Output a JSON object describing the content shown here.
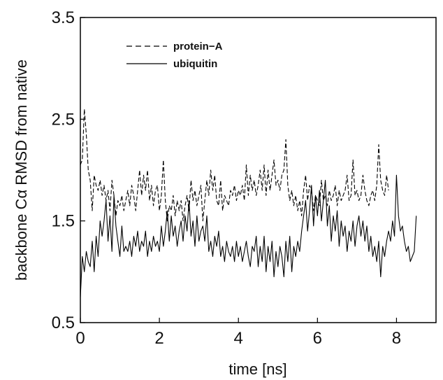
{
  "chart_data": {
    "type": "line",
    "xlabel": "time [ns]",
    "ylabel": "backbone Cα RMSD from native",
    "xlim": [
      0,
      9
    ],
    "ylim": [
      0.5,
      3.5
    ],
    "x_ticks": [
      "0",
      "2",
      "4",
      "6",
      "8"
    ],
    "y_ticks": [
      "0.5",
      "1.5",
      "2.5",
      "3.5"
    ],
    "grid": false,
    "legend_position": "top-left",
    "series": [
      {
        "name": "protein-A",
        "style": "dashed",
        "color": "#000000",
        "x": [
          0.0,
          0.05,
          0.1,
          0.15,
          0.2,
          0.25,
          0.3,
          0.35,
          0.4,
          0.45,
          0.5,
          0.55,
          0.6,
          0.65,
          0.7,
          0.75,
          0.8,
          0.85,
          0.9,
          0.95,
          1.0,
          1.05,
          1.1,
          1.15,
          1.2,
          1.25,
          1.3,
          1.35,
          1.4,
          1.45,
          1.5,
          1.55,
          1.6,
          1.65,
          1.7,
          1.75,
          1.8,
          1.85,
          1.9,
          1.95,
          2.0,
          2.05,
          2.1,
          2.15,
          2.2,
          2.25,
          2.3,
          2.35,
          2.4,
          2.45,
          2.5,
          2.55,
          2.6,
          2.65,
          2.7,
          2.75,
          2.8,
          2.85,
          2.9,
          2.95,
          3.0,
          3.05,
          3.1,
          3.15,
          3.2,
          3.25,
          3.3,
          3.35,
          3.4,
          3.45,
          3.5,
          3.55,
          3.6,
          3.65,
          3.7,
          3.75,
          3.8,
          3.85,
          3.9,
          3.95,
          4.0,
          4.05,
          4.1,
          4.15,
          4.2,
          4.25,
          4.3,
          4.35,
          4.4,
          4.45,
          4.5,
          4.55,
          4.6,
          4.65,
          4.7,
          4.75,
          4.8,
          4.85,
          4.9,
          4.95,
          5.0,
          5.05,
          5.1,
          5.15,
          5.2,
          5.25,
          5.3,
          5.35,
          5.4,
          5.45,
          5.5,
          5.55,
          5.6,
          5.65,
          5.7,
          5.75,
          5.8,
          5.85,
          5.9,
          5.95,
          6.0,
          6.05,
          6.1,
          6.15,
          6.2,
          6.25,
          6.3,
          6.35,
          6.4,
          6.45,
          6.5,
          6.55,
          6.6,
          6.65,
          6.7,
          6.75,
          6.8,
          6.85,
          6.9,
          6.95,
          7.0,
          7.05,
          7.1,
          7.15,
          7.2,
          7.25,
          7.3,
          7.35,
          7.4,
          7.45,
          7.5,
          7.55,
          7.6,
          7.65,
          7.7,
          7.75,
          7.8
        ],
        "values": [
          2.05,
          2.1,
          2.6,
          2.35,
          2.0,
          1.9,
          1.6,
          1.95,
          1.85,
          1.8,
          1.9,
          1.75,
          1.85,
          1.7,
          1.8,
          1.6,
          1.9,
          1.75,
          1.55,
          1.7,
          1.65,
          1.75,
          1.6,
          1.7,
          1.8,
          1.65,
          1.85,
          1.75,
          1.6,
          1.8,
          2.0,
          1.75,
          1.95,
          1.8,
          2.0,
          1.7,
          1.85,
          1.65,
          1.8,
          1.85,
          1.6,
          1.75,
          2.1,
          1.7,
          1.5,
          1.65,
          1.6,
          1.75,
          1.55,
          1.7,
          1.6,
          1.7,
          1.5,
          1.65,
          1.75,
          1.6,
          1.9,
          1.7,
          1.8,
          1.65,
          1.75,
          1.85,
          1.5,
          1.7,
          1.9,
          1.75,
          2.0,
          1.8,
          1.95,
          1.7,
          1.65,
          1.9,
          1.6,
          1.75,
          1.7,
          1.65,
          1.8,
          1.75,
          1.85,
          1.7,
          1.8,
          1.75,
          1.85,
          1.7,
          2.05,
          1.75,
          1.95,
          1.8,
          1.9,
          1.75,
          1.85,
          2.0,
          1.8,
          2.05,
          1.75,
          2.0,
          1.8,
          1.95,
          2.1,
          1.85,
          1.9,
          1.8,
          1.95,
          2.0,
          2.3,
          1.85,
          1.7,
          1.8,
          1.65,
          1.75,
          1.6,
          1.7,
          1.55,
          1.8,
          1.95,
          1.7,
          1.85,
          1.8,
          1.6,
          1.75,
          1.7,
          1.65,
          1.9,
          1.7,
          1.75,
          1.65,
          1.8,
          1.7,
          1.75,
          1.85,
          1.65,
          1.8,
          1.7,
          1.75,
          1.8,
          1.95,
          1.7,
          1.75,
          2.1,
          1.75,
          1.8,
          1.7,
          1.75,
          1.95,
          1.8,
          1.7,
          1.65,
          1.75,
          1.8,
          1.7,
          1.85,
          2.25,
          1.9,
          1.8,
          1.75,
          1.95,
          1.8
        ],
        "label_text": "protein−A"
      },
      {
        "name": "ubiquitin",
        "style": "solid",
        "color": "#000000",
        "x": [
          0.0,
          0.05,
          0.1,
          0.15,
          0.2,
          0.25,
          0.3,
          0.35,
          0.4,
          0.45,
          0.5,
          0.55,
          0.6,
          0.65,
          0.7,
          0.75,
          0.8,
          0.85,
          0.9,
          0.95,
          1.0,
          1.05,
          1.1,
          1.15,
          1.2,
          1.25,
          1.3,
          1.35,
          1.4,
          1.45,
          1.5,
          1.55,
          1.6,
          1.65,
          1.7,
          1.75,
          1.8,
          1.85,
          1.9,
          1.95,
          2.0,
          2.05,
          2.1,
          2.15,
          2.2,
          2.25,
          2.3,
          2.35,
          2.4,
          2.45,
          2.5,
          2.55,
          2.6,
          2.65,
          2.7,
          2.75,
          2.8,
          2.85,
          2.9,
          2.95,
          3.0,
          3.05,
          3.1,
          3.15,
          3.2,
          3.25,
          3.3,
          3.35,
          3.4,
          3.45,
          3.5,
          3.55,
          3.6,
          3.65,
          3.7,
          3.75,
          3.8,
          3.85,
          3.9,
          3.95,
          4.0,
          4.05,
          4.1,
          4.15,
          4.2,
          4.25,
          4.3,
          4.35,
          4.4,
          4.45,
          4.5,
          4.55,
          4.6,
          4.65,
          4.7,
          4.75,
          4.8,
          4.85,
          4.9,
          4.95,
          5.0,
          5.05,
          5.1,
          5.15,
          5.2,
          5.25,
          5.3,
          5.35,
          5.4,
          5.45,
          5.5,
          5.55,
          5.6,
          5.65,
          5.7,
          5.75,
          5.8,
          5.85,
          5.9,
          5.95,
          6.0,
          6.05,
          6.1,
          6.15,
          6.2,
          6.25,
          6.3,
          6.35,
          6.4,
          6.45,
          6.5,
          6.55,
          6.6,
          6.65,
          6.7,
          6.75,
          6.8,
          6.85,
          6.9,
          6.95,
          7.0,
          7.05,
          7.1,
          7.15,
          7.2,
          7.25,
          7.3,
          7.35,
          7.4,
          7.45,
          7.5,
          7.55,
          7.6,
          7.65,
          7.7,
          7.75,
          7.8,
          7.85,
          7.9,
          7.95,
          8.0,
          8.05,
          8.1,
          8.15,
          8.2,
          8.25,
          8.3,
          8.35,
          8.4,
          8.45,
          8.5
        ],
        "values": [
          0.75,
          1.15,
          1.0,
          1.2,
          1.1,
          1.05,
          1.3,
          1.0,
          1.35,
          1.15,
          1.5,
          1.35,
          1.5,
          1.7,
          1.3,
          1.55,
          1.2,
          1.75,
          1.45,
          1.3,
          1.15,
          1.45,
          1.2,
          1.25,
          1.2,
          1.3,
          1.15,
          1.35,
          1.25,
          1.4,
          1.2,
          1.3,
          1.25,
          1.4,
          1.15,
          1.3,
          1.2,
          1.35,
          1.25,
          1.3,
          1.2,
          1.45,
          1.25,
          1.4,
          1.6,
          1.3,
          1.55,
          1.35,
          1.45,
          1.25,
          1.4,
          1.5,
          1.3,
          1.55,
          1.4,
          1.7,
          1.35,
          1.5,
          1.25,
          1.55,
          1.3,
          1.4,
          1.45,
          1.3,
          1.55,
          1.2,
          1.3,
          1.15,
          1.35,
          1.25,
          1.4,
          1.15,
          1.25,
          1.1,
          1.3,
          1.2,
          1.15,
          1.25,
          1.1,
          1.3,
          1.15,
          1.25,
          1.1,
          1.2,
          1.3,
          1.15,
          1.05,
          1.25,
          1.2,
          1.35,
          1.05,
          1.25,
          1.1,
          1.35,
          1.0,
          1.25,
          1.1,
          1.3,
          0.95,
          1.2,
          1.05,
          1.25,
          1.15,
          0.95,
          1.3,
          1.1,
          1.35,
          1.0,
          1.25,
          1.15,
          1.3,
          1.2,
          1.4,
          1.55,
          1.7,
          1.4,
          1.6,
          1.85,
          1.45,
          1.75,
          1.55,
          1.8,
          1.5,
          1.7,
          1.9,
          1.45,
          1.65,
          1.3,
          1.55,
          1.4,
          1.6,
          1.25,
          1.5,
          1.35,
          1.45,
          1.2,
          1.4,
          1.3,
          1.5,
          1.25,
          1.45,
          1.55,
          1.35,
          1.5,
          1.3,
          1.45,
          1.2,
          1.35,
          1.15,
          1.25,
          1.1,
          1.3,
          0.95,
          1.25,
          1.15,
          1.3,
          1.4,
          1.3,
          1.5,
          1.35,
          1.95,
          1.55,
          1.4,
          1.45,
          1.3,
          1.2,
          1.25,
          1.1,
          1.15,
          1.2,
          1.55
        ],
        "label_text": "ubiquitin"
      }
    ]
  }
}
